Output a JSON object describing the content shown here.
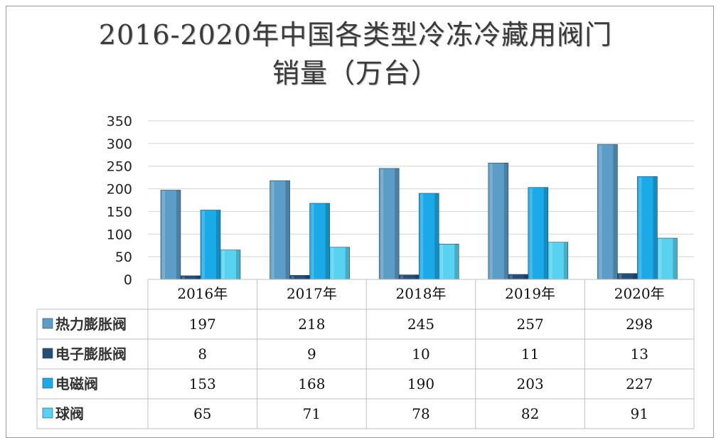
{
  "colors": {
    "热力膨胀阀": "#5b9dc6",
    "电子膨胀阀": "#244e78",
    "电磁阀": "#1aaae8",
    "球阀": "#57d3f1",
    "grid": "#d4d4d4",
    "table": "#bfbfbf"
  },
  "chart_data": {
    "type": "bar",
    "title_line1": "2016-2020年中国各类型冷冻冷藏用阀门",
    "title_line2": "销量（万台）",
    "categories": [
      "2016年",
      "2017年",
      "2018年",
      "2019年",
      "2020年"
    ],
    "ylim": [
      0,
      350
    ],
    "yticks": [
      0,
      50,
      100,
      150,
      200,
      250,
      300,
      350
    ],
    "grid": true,
    "legend": "data-table",
    "series": [
      {
        "name": "热力膨胀阀",
        "values": [
          197,
          218,
          245,
          257,
          298
        ]
      },
      {
        "name": "电子膨胀阀",
        "values": [
          8,
          9,
          10,
          11,
          13
        ]
      },
      {
        "name": "电磁阀",
        "values": [
          153,
          168,
          190,
          203,
          227
        ]
      },
      {
        "name": "球阀",
        "values": [
          65,
          71,
          78,
          82,
          91
        ]
      }
    ]
  }
}
